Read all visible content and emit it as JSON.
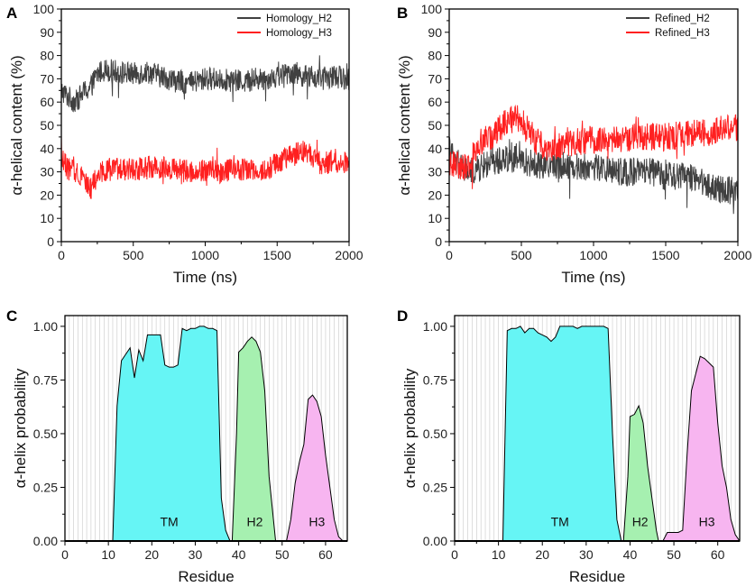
{
  "chart_data": [
    {
      "panel": "A",
      "type": "line",
      "xlabel": "Time (ns)",
      "ylabel": "α-helical content (%)",
      "xlim": [
        0,
        2000
      ],
      "ylim": [
        0,
        100
      ],
      "xticks": [
        0,
        500,
        1000,
        1500,
        2000
      ],
      "yticks": [
        0,
        10,
        20,
        30,
        40,
        50,
        60,
        70,
        80,
        90,
        100
      ],
      "legend_position": "top-right",
      "series": [
        {
          "name": "Homology_H2",
          "color": "#404040",
          "x": [
            0,
            50,
            100,
            150,
            200,
            250,
            300,
            400,
            500,
            600,
            700,
            800,
            900,
            1000,
            1100,
            1200,
            1300,
            1400,
            1500,
            1600,
            1700,
            1800,
            1900,
            2000
          ],
          "values": [
            65,
            62,
            60,
            64,
            66,
            72,
            74,
            73,
            72,
            73,
            71,
            69,
            68,
            70,
            70,
            69,
            69,
            70,
            71,
            73,
            71,
            70,
            71,
            70
          ]
        },
        {
          "name": "Homology_H3",
          "color": "#ff2020",
          "x": [
            0,
            50,
            100,
            150,
            200,
            250,
            300,
            400,
            500,
            600,
            700,
            800,
            900,
            1000,
            1100,
            1200,
            1300,
            1400,
            1500,
            1600,
            1700,
            1800,
            1900,
            2000
          ],
          "values": [
            36,
            31,
            30,
            29,
            22,
            28,
            31,
            31,
            31,
            32,
            32,
            31,
            30,
            31,
            30,
            31,
            31,
            30,
            34,
            37,
            39,
            33,
            35,
            34
          ]
        }
      ]
    },
    {
      "panel": "B",
      "type": "line",
      "xlabel": "Time (ns)",
      "ylabel": "α-helical content (%)",
      "xlim": [
        0,
        2000
      ],
      "ylim": [
        0,
        100
      ],
      "xticks": [
        0,
        500,
        1000,
        1500,
        2000
      ],
      "yticks": [
        0,
        10,
        20,
        30,
        40,
        50,
        60,
        70,
        80,
        90,
        100
      ],
      "legend_position": "top-right",
      "series": [
        {
          "name": "Refined_H2",
          "color": "#404040",
          "x": [
            0,
            50,
            100,
            150,
            200,
            250,
            300,
            400,
            500,
            600,
            700,
            800,
            900,
            1000,
            1100,
            1200,
            1300,
            1400,
            1500,
            1600,
            1700,
            1800,
            1900,
            2000
          ],
          "values": [
            40,
            33,
            31,
            30,
            31,
            33,
            34,
            36,
            35,
            33,
            33,
            33,
            32,
            32,
            31,
            30,
            30,
            30,
            28,
            28,
            28,
            24,
            22,
            22
          ]
        },
        {
          "name": "Refined_H3",
          "color": "#ff2020",
          "x": [
            0,
            50,
            100,
            150,
            200,
            250,
            300,
            400,
            500,
            600,
            700,
            800,
            900,
            1000,
            1100,
            1200,
            1300,
            1400,
            1500,
            1600,
            1700,
            1800,
            1900,
            2000
          ],
          "values": [
            35,
            33,
            32,
            34,
            43,
            44,
            45,
            52,
            53,
            43,
            40,
            42,
            43,
            44,
            44,
            44,
            45,
            45,
            45,
            46,
            47,
            47,
            49,
            49
          ]
        }
      ]
    },
    {
      "panel": "C",
      "type": "area",
      "xlabel": "Residue",
      "ylabel": "α-helix probability",
      "xlim": [
        0,
        65
      ],
      "ylim": [
        0,
        1.05
      ],
      "xticks": [
        0,
        10,
        20,
        30,
        40,
        50,
        60
      ],
      "yticks": [
        "0.00",
        "0.25",
        "0.50",
        "0.75",
        "1.00"
      ],
      "grid": "vertical at every residue",
      "regions": [
        {
          "label": "TM",
          "color": "#66f5f5",
          "label_at": [
            24,
            0.07
          ],
          "points": [
            [
              11,
              0
            ],
            [
              12,
              0.63
            ],
            [
              13,
              0.84
            ],
            [
              14,
              0.87
            ],
            [
              15,
              0.9
            ],
            [
              16,
              0.76
            ],
            [
              17,
              0.89
            ],
            [
              18,
              0.84
            ],
            [
              19,
              0.96
            ],
            [
              20,
              0.96
            ],
            [
              21,
              0.96
            ],
            [
              22,
              0.96
            ],
            [
              23,
              0.82
            ],
            [
              24,
              0.81
            ],
            [
              25,
              0.81
            ],
            [
              26,
              0.82
            ],
            [
              27,
              0.99
            ],
            [
              28,
              0.98
            ],
            [
              29,
              0.99
            ],
            [
              30,
              0.99
            ],
            [
              31,
              1.0
            ],
            [
              32,
              1.0
            ],
            [
              33,
              0.99
            ],
            [
              34,
              0.99
            ],
            [
              35,
              0.98
            ],
            [
              36,
              0.2
            ],
            [
              37,
              0.05
            ],
            [
              38,
              0
            ]
          ]
        },
        {
          "label": "H2",
          "color": "#a6f0b0",
          "label_at": [
            43.7,
            0.07
          ],
          "points": [
            [
              38.5,
              0
            ],
            [
              39.5,
              0.5
            ],
            [
              40,
              0.88
            ],
            [
              41,
              0.9
            ],
            [
              42,
              0.93
            ],
            [
              43,
              0.95
            ],
            [
              44,
              0.93
            ],
            [
              45,
              0.88
            ],
            [
              46,
              0.7
            ],
            [
              47,
              0.3
            ],
            [
              48,
              0.1
            ],
            [
              48.5,
              0
            ]
          ]
        },
        {
          "label": "H3",
          "color": "#f7b5f0",
          "label_at": [
            58,
            0.07
          ],
          "points": [
            [
              51,
              0
            ],
            [
              52,
              0.1
            ],
            [
              53,
              0.27
            ],
            [
              54,
              0.37
            ],
            [
              55,
              0.45
            ],
            [
              56,
              0.66
            ],
            [
              57,
              0.68
            ],
            [
              58,
              0.65
            ],
            [
              59,
              0.58
            ],
            [
              60,
              0.4
            ],
            [
              61,
              0.25
            ],
            [
              62,
              0.1
            ],
            [
              63,
              0.02
            ],
            [
              64,
              0
            ]
          ]
        }
      ]
    },
    {
      "panel": "D",
      "type": "area",
      "xlabel": "Residue",
      "ylabel": "α-helix probability",
      "xlim": [
        0,
        65
      ],
      "ylim": [
        0,
        1.05
      ],
      "xticks": [
        0,
        10,
        20,
        30,
        40,
        50,
        60
      ],
      "yticks": [
        "0.00",
        "0.25",
        "0.50",
        "0.75",
        "1.00"
      ],
      "grid": "vertical at every residue",
      "regions": [
        {
          "label": "TM",
          "color": "#66f5f5",
          "label_at": [
            24,
            0.07
          ],
          "points": [
            [
              11,
              0
            ],
            [
              12,
              0.98
            ],
            [
              13,
              0.99
            ],
            [
              14,
              0.99
            ],
            [
              15,
              1.0
            ],
            [
              16,
              0.97
            ],
            [
              17,
              0.99
            ],
            [
              18,
              0.99
            ],
            [
              19,
              0.97
            ],
            [
              20,
              0.96
            ],
            [
              21,
              0.95
            ],
            [
              22,
              0.93
            ],
            [
              23,
              0.95
            ],
            [
              24,
              1.0
            ],
            [
              25,
              1.0
            ],
            [
              26,
              1.0
            ],
            [
              27,
              1.0
            ],
            [
              28,
              0.99
            ],
            [
              29,
              1.0
            ],
            [
              30,
              1.0
            ],
            [
              31,
              1.0
            ],
            [
              32,
              1.0
            ],
            [
              33,
              1.0
            ],
            [
              34,
              1.0
            ],
            [
              35,
              0.99
            ],
            [
              36,
              0.5
            ],
            [
              37,
              0.1
            ],
            [
              38,
              0
            ]
          ]
        },
        {
          "label": "H2",
          "color": "#a6f0b0",
          "label_at": [
            42.3,
            0.07
          ],
          "points": [
            [
              38.5,
              0
            ],
            [
              39.5,
              0.3
            ],
            [
              40,
              0.58
            ],
            [
              41,
              0.59
            ],
            [
              42,
              0.63
            ],
            [
              43,
              0.55
            ],
            [
              44,
              0.35
            ],
            [
              45,
              0.2
            ],
            [
              46,
              0.05
            ],
            [
              46.5,
              0
            ]
          ]
        },
        {
          "label": "H3",
          "color": "#f7b5f0",
          "label_at": [
            57.5,
            0.07
          ],
          "points": [
            [
              47.5,
              0
            ],
            [
              48.5,
              0.04
            ],
            [
              51,
              0.04
            ],
            [
              52,
              0.05
            ],
            [
              53,
              0.4
            ],
            [
              54,
              0.7
            ],
            [
              55,
              0.78
            ],
            [
              56,
              0.86
            ],
            [
              57,
              0.85
            ],
            [
              58,
              0.83
            ],
            [
              59,
              0.81
            ],
            [
              60,
              0.55
            ],
            [
              61,
              0.35
            ],
            [
              62,
              0.25
            ],
            [
              63,
              0.1
            ],
            [
              64,
              0.03
            ],
            [
              65,
              0
            ]
          ]
        }
      ]
    }
  ]
}
